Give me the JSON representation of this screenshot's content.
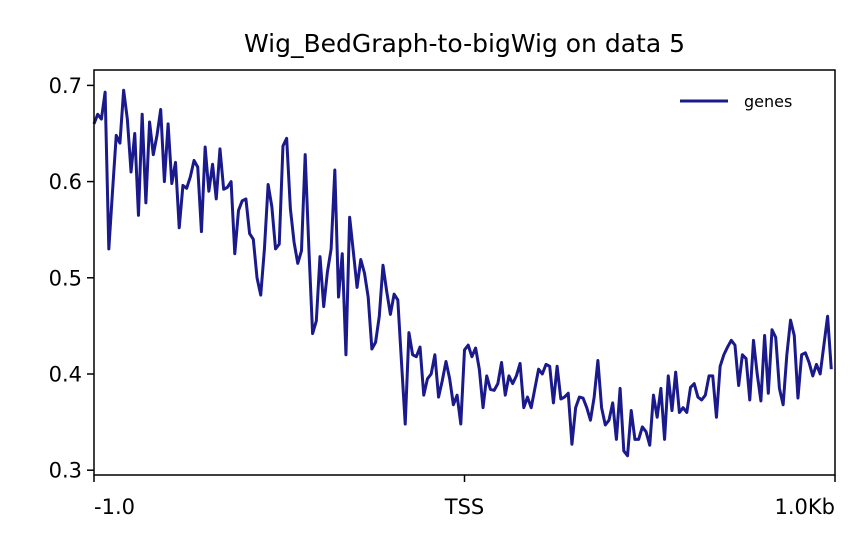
{
  "chart_data": {
    "type": "line",
    "title": "Wig_BedGraph-to-bigWig on data 5",
    "xlabel": "",
    "ylabel": "",
    "x_tick_labels": [
      "-1.0",
      "TSS",
      "1.0Kb"
    ],
    "x_tick_positions": [
      0,
      100,
      200
    ],
    "y_ticks": [
      0.3,
      0.4,
      0.5,
      0.6,
      0.7
    ],
    "y_tick_labels": [
      "0.3",
      "0.4",
      "0.5",
      "0.6",
      "0.7"
    ],
    "xlim": [
      0,
      200
    ],
    "ylim": [
      0.295,
      0.716
    ],
    "legend_position": "top-right",
    "series": [
      {
        "name": "genes",
        "color": "#1a1a8c",
        "x_step": 1,
        "values": [
          0.66,
          0.67,
          0.665,
          0.693,
          0.53,
          0.59,
          0.648,
          0.64,
          0.695,
          0.665,
          0.61,
          0.65,
          0.565,
          0.67,
          0.578,
          0.662,
          0.628,
          0.648,
          0.675,
          0.6,
          0.66,
          0.598,
          0.62,
          0.552,
          0.596,
          0.593,
          0.605,
          0.622,
          0.615,
          0.548,
          0.636,
          0.59,
          0.618,
          0.582,
          0.634,
          0.592,
          0.594,
          0.6,
          0.525,
          0.57,
          0.58,
          0.582,
          0.546,
          0.54,
          0.5,
          0.482,
          0.53,
          0.597,
          0.574,
          0.53,
          0.535,
          0.637,
          0.645,
          0.572,
          0.537,
          0.515,
          0.528,
          0.628,
          0.53,
          0.442,
          0.455,
          0.522,
          0.47,
          0.506,
          0.53,
          0.612,
          0.48,
          0.525,
          0.42,
          0.563,
          0.527,
          0.49,
          0.519,
          0.505,
          0.48,
          0.426,
          0.433,
          0.46,
          0.513,
          0.486,
          0.462,
          0.483,
          0.477,
          0.412,
          0.348,
          0.443,
          0.42,
          0.418,
          0.428,
          0.378,
          0.395,
          0.4,
          0.42,
          0.376,
          0.393,
          0.413,
          0.395,
          0.368,
          0.378,
          0.348,
          0.425,
          0.43,
          0.418,
          0.427,
          0.405,
          0.365,
          0.398,
          0.384,
          0.383,
          0.39,
          0.412,
          0.378,
          0.398,
          0.39,
          0.398,
          0.411,
          0.365,
          0.376,
          0.365,
          0.385,
          0.405,
          0.4,
          0.41,
          0.408,
          0.37,
          0.408,
          0.374,
          0.376,
          0.38,
          0.327,
          0.365,
          0.376,
          0.375,
          0.365,
          0.352,
          0.376,
          0.414,
          0.365,
          0.347,
          0.352,
          0.37,
          0.332,
          0.385,
          0.32,
          0.315,
          0.362,
          0.332,
          0.332,
          0.345,
          0.34,
          0.326,
          0.378,
          0.355,
          0.385,
          0.332,
          0.398,
          0.362,
          0.402,
          0.36,
          0.365,
          0.36,
          0.386,
          0.39,
          0.376,
          0.373,
          0.378,
          0.398,
          0.398,
          0.355,
          0.408,
          0.42,
          0.428,
          0.435,
          0.43,
          0.388,
          0.42,
          0.416,
          0.373,
          0.435,
          0.4,
          0.372,
          0.44,
          0.38,
          0.446,
          0.438,
          0.385,
          0.368,
          0.42,
          0.456,
          0.44,
          0.375,
          0.42,
          0.422,
          0.412,
          0.398,
          0.41,
          0.4,
          0.43,
          0.46,
          0.405
        ]
      }
    ]
  }
}
